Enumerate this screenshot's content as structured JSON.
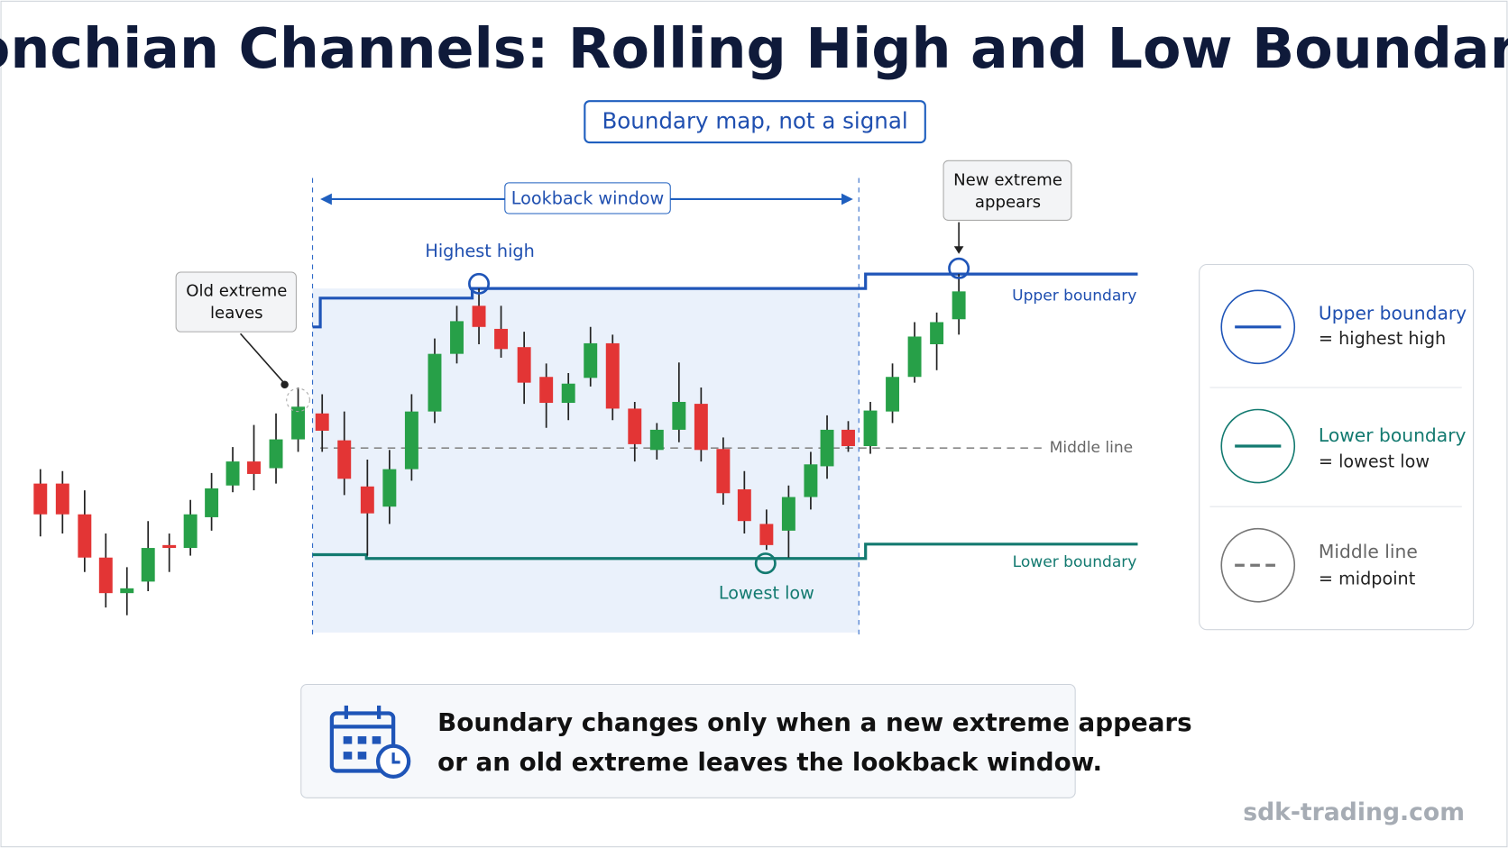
{
  "header": {
    "title": "Donchian Channels: Rolling High and Low Boundaries",
    "badge": "Boundary map, not a signal"
  },
  "chart": {
    "lookback": "Lookback window",
    "highest_high": "Highest high",
    "lowest_low": "Lowest low",
    "old_extreme": [
      "Old extreme",
      "leaves"
    ],
    "new_extreme": [
      "New extreme",
      "appears"
    ],
    "upper_boundary": "Upper boundary",
    "middle_line": "Middle line",
    "lower_boundary": "Lower boundary"
  },
  "legend": [
    {
      "title": "Upper boundary",
      "desc": "= highest high"
    },
    {
      "title": "Lower boundary",
      "desc": "= lowest low"
    },
    {
      "title": "Middle line",
      "desc": "= midpoint"
    }
  ],
  "note": [
    "Boundary changes only when a new extreme appears",
    "or an old extreme leaves the lookback window."
  ],
  "footer": "sdk-trading.com"
}
